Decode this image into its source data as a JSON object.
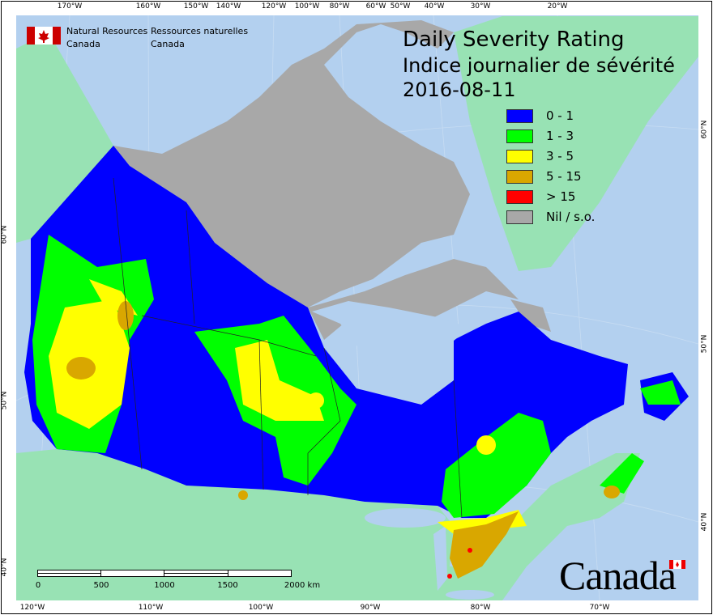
{
  "header": {
    "agency_en_line1": "Natural Resources",
    "agency_en_line2": "Canada",
    "agency_fr_line1": "Ressources naturelles",
    "agency_fr_line2": "Canada"
  },
  "title": {
    "en": "Daily Severity Rating",
    "fr": "Indice journalier de sévérité",
    "date": "2016-08-11"
  },
  "legend": [
    {
      "label": "0 - 1",
      "color": "#0000ff"
    },
    {
      "label": "1 - 3",
      "color": "#00ff00"
    },
    {
      "label": "3 - 5",
      "color": "#ffff00"
    },
    {
      "label": "5 - 15",
      "color": "#d9a700"
    },
    {
      "label": "> 15",
      "color": "#ff0000"
    },
    {
      "label": "Nil / s.o.",
      "color": "#a8a8a8"
    }
  ],
  "graticule": {
    "top": [
      "170°W",
      "160°W",
      "150°W",
      "140°W",
      "120°W",
      "100°W",
      "80°W",
      "60°W",
      "50°W",
      "40°W",
      "30°W",
      "20°W"
    ],
    "bottom": [
      "120°W",
      "110°W",
      "100°W",
      "90°W",
      "80°W",
      "70°W"
    ],
    "left": [
      "60°N",
      "50°N",
      "40°N"
    ],
    "right": [
      "60°N",
      "50°N",
      "40°N"
    ]
  },
  "scale_bar": {
    "labels": [
      "0",
      "500",
      "1000",
      "1500",
      "2000 km"
    ]
  },
  "wordmark": "Canada",
  "colors": {
    "water": "#b3d0ef",
    "foreign_land": "#98e2b4",
    "nil": "#a8a8a8"
  }
}
